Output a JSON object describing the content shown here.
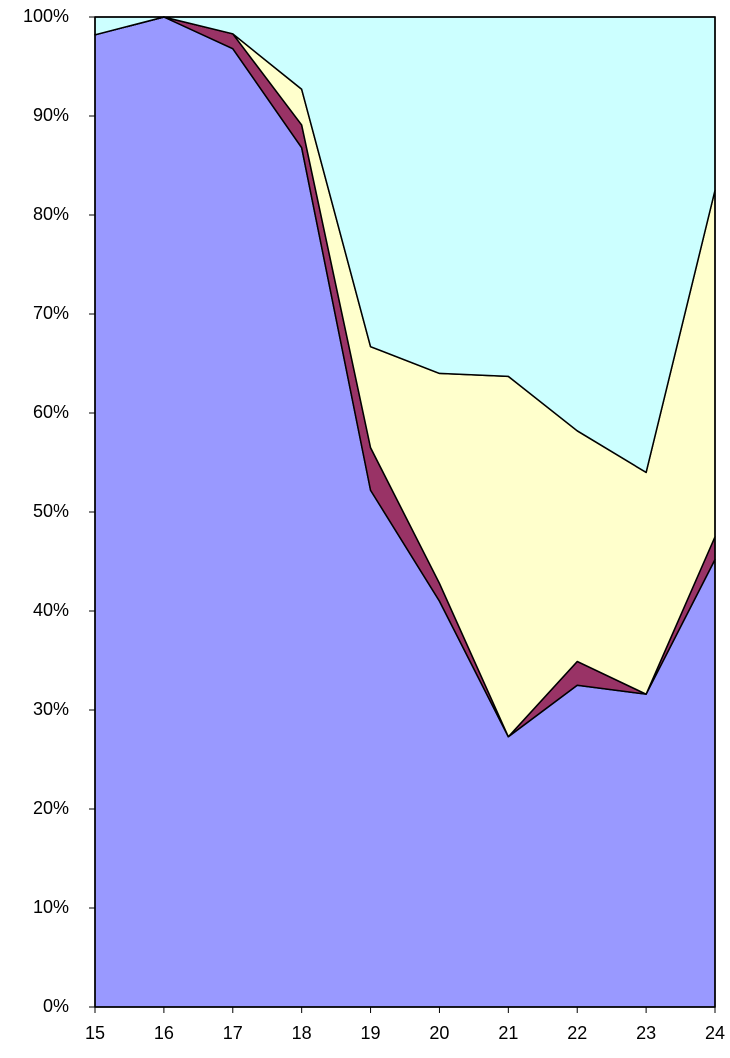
{
  "chart_data": {
    "type": "stacked_area_percent",
    "x": [
      15,
      16,
      17,
      18,
      19,
      20,
      21,
      22,
      23,
      24
    ],
    "xlim": [
      15,
      24
    ],
    "xticks": [
      15,
      16,
      17,
      18,
      19,
      20,
      21,
      22,
      23,
      24
    ],
    "ylim": [
      0,
      100
    ],
    "yticks": [
      {
        "value": 0,
        "label": "0%"
      },
      {
        "value": 10,
        "label": "10%"
      },
      {
        "value": 20,
        "label": "20%"
      },
      {
        "value": 30,
        "label": "30%"
      },
      {
        "value": 40,
        "label": "40%"
      },
      {
        "value": 50,
        "label": "50%"
      },
      {
        "value": 60,
        "label": "60%"
      },
      {
        "value": 70,
        "label": "70%"
      },
      {
        "value": 80,
        "label": "80%"
      },
      {
        "value": 90,
        "label": "90%"
      },
      {
        "value": 100,
        "label": "100%"
      }
    ],
    "series": [
      {
        "color": "#9999ff",
        "values": [
          98.2,
          100,
          96.8,
          86.8,
          52.2,
          41,
          27.3,
          32.5,
          31.6,
          45.2
        ]
      },
      {
        "color": "#993366",
        "values": [
          0,
          0,
          1.5,
          2.3,
          4.3,
          1.8,
          0,
          2.4,
          0,
          2.3
        ]
      },
      {
        "color": "#ffffcc",
        "values": [
          0,
          0,
          0,
          3.6,
          10.2,
          21.2,
          36.4,
          23.3,
          22.4,
          35
        ]
      },
      {
        "color": "#ccffff",
        "values": [
          1.8,
          0,
          1.7,
          7.3,
          33.3,
          36,
          36.3,
          41.8,
          46,
          17.5
        ]
      }
    ]
  }
}
